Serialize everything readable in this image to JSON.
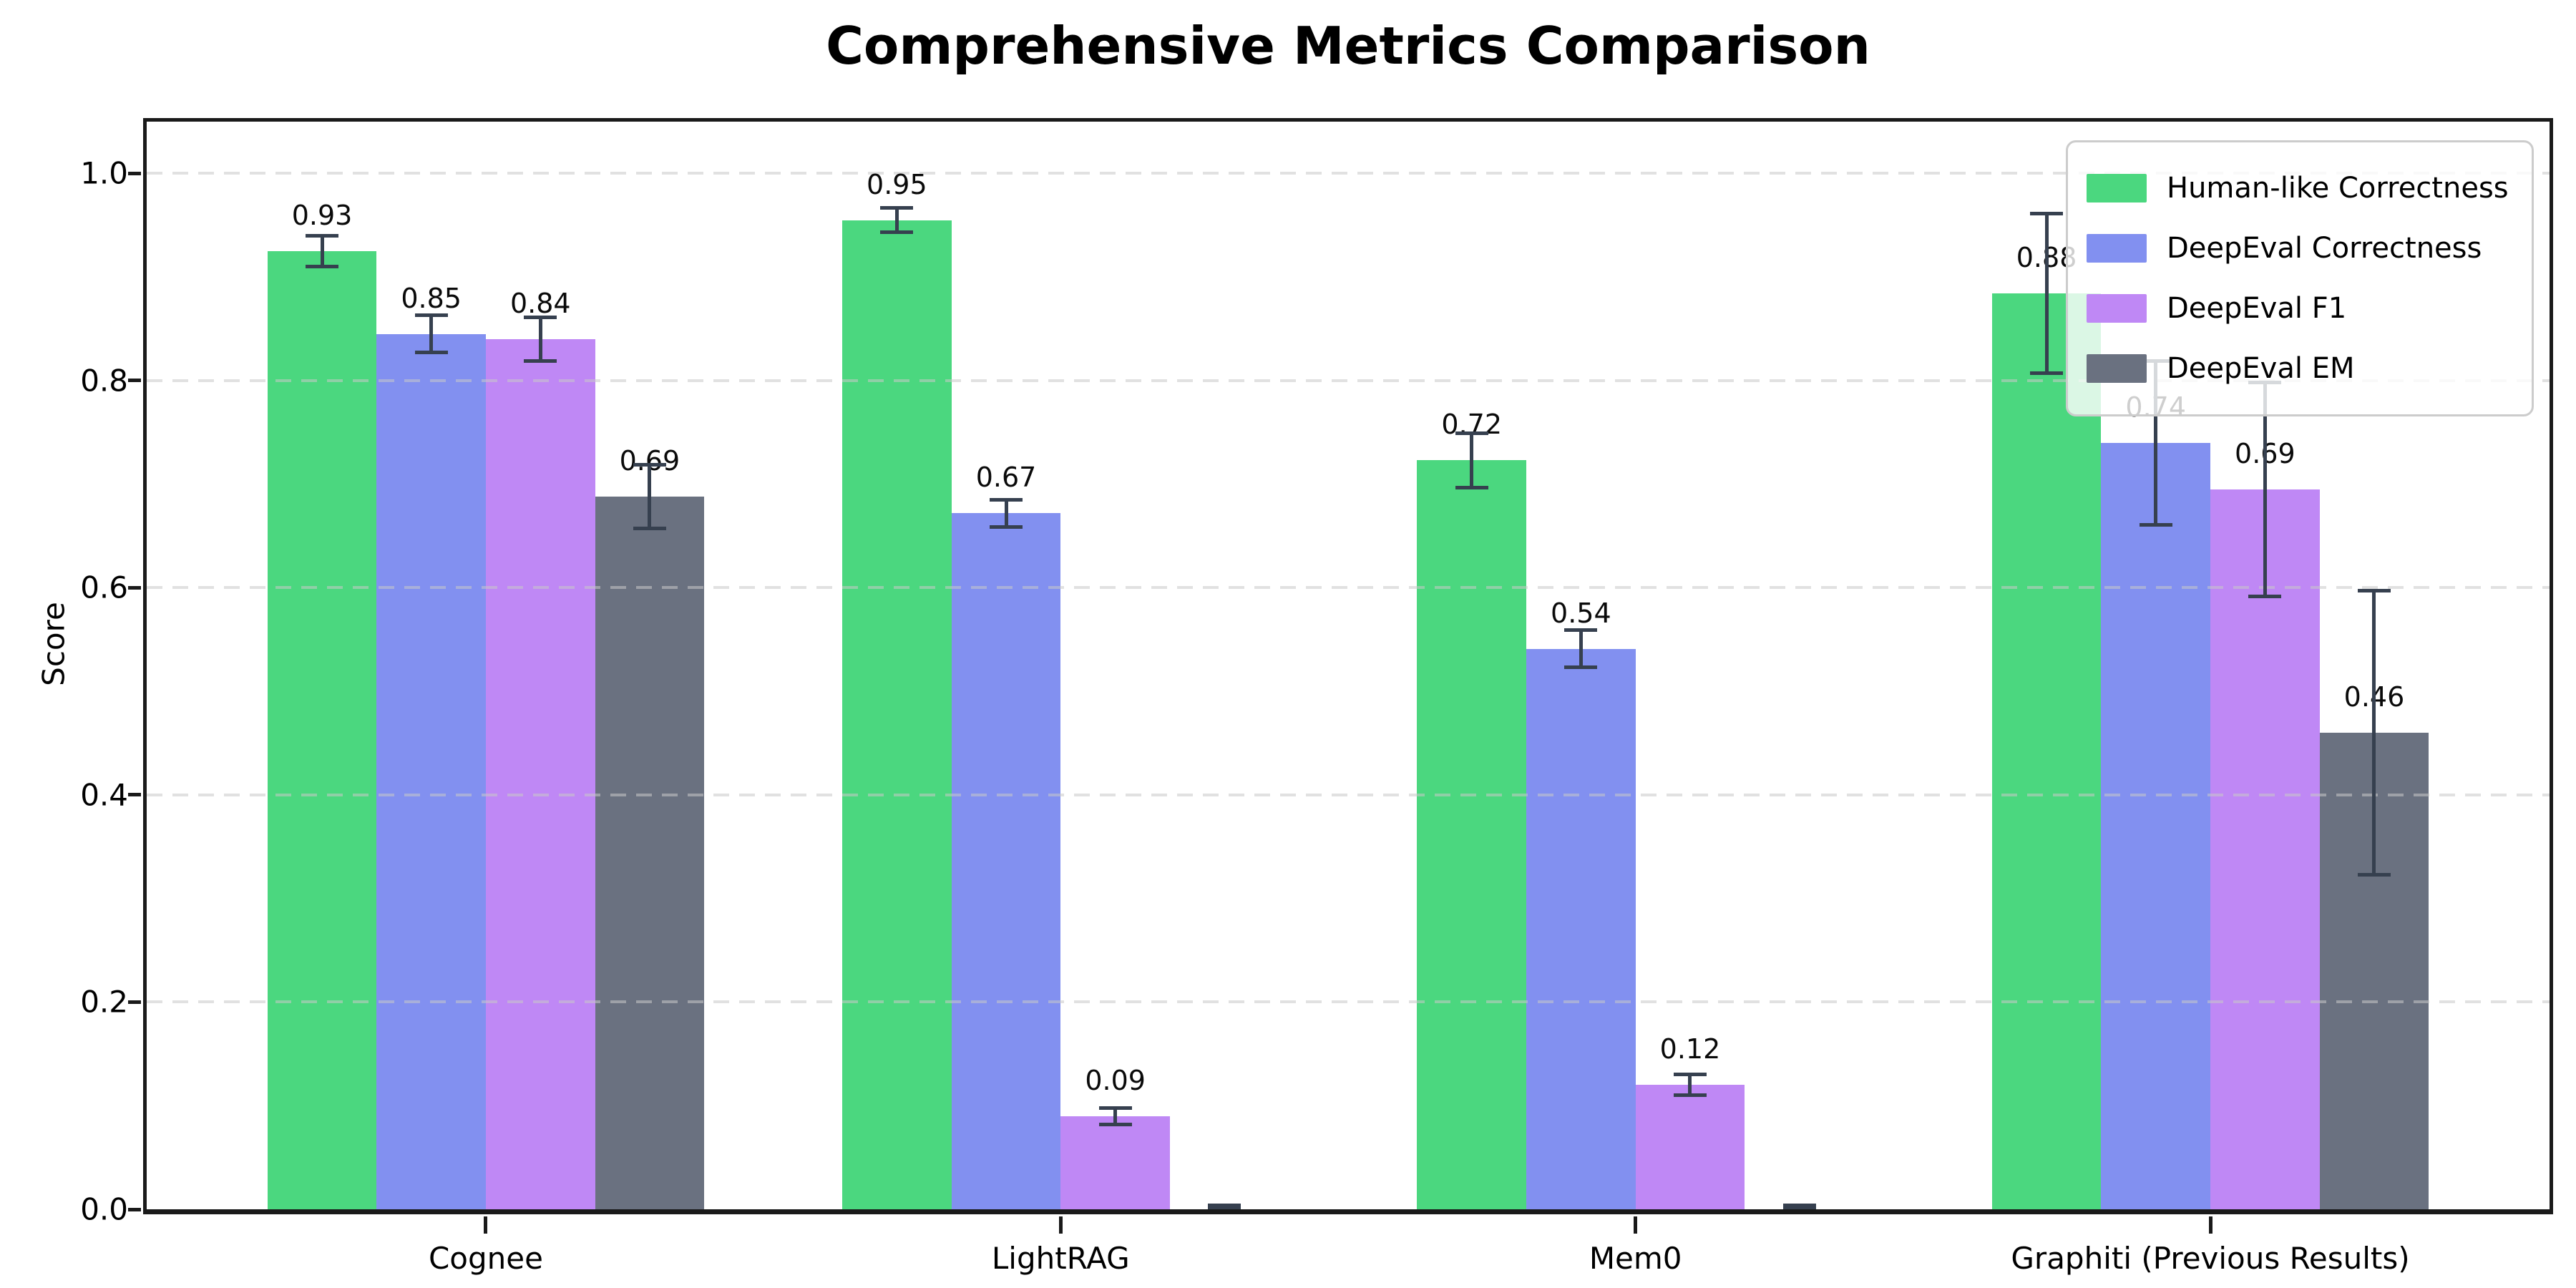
{
  "figure": {
    "title": "Comprehensive Metrics Comparison"
  },
  "chart_data": {
    "type": "bar",
    "title": "Comprehensive Metrics Comparison",
    "xlabel": "",
    "ylabel": "Score",
    "categories": [
      "Cognee",
      "LightRAG",
      "Mem0",
      "Graphiti (Previous Results)"
    ],
    "y_ticks": [
      "0.0",
      "0.2",
      "0.4",
      "0.6",
      "0.8",
      "1.0"
    ],
    "ylim": [
      0,
      1.05
    ],
    "grid": "horizontal-dashed",
    "legend_position": "upper-right",
    "error_bar_color": "#36404f",
    "series": [
      {
        "name": "Human-like Correctness",
        "color": "#4bd77f",
        "values": [
          0.925,
          0.955,
          0.723,
          0.884
        ],
        "errors": [
          0.015,
          0.012,
          0.026,
          0.077
        ],
        "labels": [
          "0.93",
          "0.95",
          "0.72",
          "0.88"
        ]
      },
      {
        "name": "DeepEval Correctness",
        "color": "#8290f0",
        "values": [
          0.845,
          0.672,
          0.541,
          0.74
        ],
        "errors": [
          0.018,
          0.013,
          0.018,
          0.079
        ],
        "labels": [
          "0.85",
          "0.67",
          "0.54",
          "0.74"
        ]
      },
      {
        "name": "DeepEval F1",
        "color": "#bf88f5",
        "values": [
          0.84,
          0.09,
          0.12,
          0.695
        ],
        "errors": [
          0.021,
          0.008,
          0.01,
          0.103
        ],
        "labels": [
          "0.84",
          "0.09",
          "0.12",
          "0.69"
        ]
      },
      {
        "name": "DeepEval EM",
        "color": "#6a7180",
        "values": [
          0.688,
          0.0,
          0.0,
          0.46
        ],
        "errors": [
          0.031,
          0.004,
          0.004,
          0.137
        ],
        "labels": [
          "0.69",
          "",
          "",
          "0.46"
        ]
      }
    ]
  }
}
